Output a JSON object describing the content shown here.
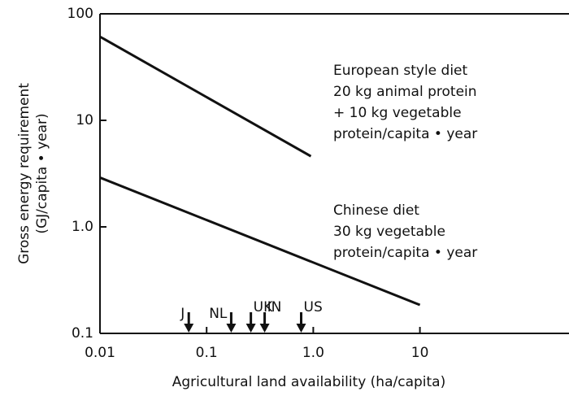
{
  "chart_data": {
    "type": "line",
    "y_label_lines": [
      "Gross energy requirement",
      "(GJ/capita • year)"
    ],
    "x_label": "Agricultural land availability (ha/capita)",
    "log_x": true,
    "log_y": true,
    "xlim": [
      0.01,
      250
    ],
    "ylim": [
      0.1,
      100
    ],
    "xticks": [
      0.01,
      0.1,
      {
        "value": 1,
        "label": "1.0"
      },
      10
    ],
    "yticks": [
      0.1,
      {
        "value": 1,
        "label": "1.0"
      },
      10,
      100
    ],
    "color": "#111111",
    "series": [
      {
        "label_lines": [
          "European style diet",
          "20 kg animal protein",
          "+ 10 kg vegetable",
          "protein/capita • year"
        ],
        "x": [
          0.01,
          0.95
        ],
        "values": [
          61,
          4.6
        ]
      },
      {
        "label_lines": [
          "Chinese diet",
          "30 kg vegetable",
          "protein/capita • year"
        ],
        "x": [
          0.01,
          10
        ],
        "values": [
          2.9,
          0.185
        ]
      }
    ],
    "markers": [
      {
        "label": "J",
        "x": 0.068
      },
      {
        "label": "NL",
        "x": 0.17
      },
      {
        "label": "UK",
        "x": 0.26
      },
      {
        "label": "IN",
        "x": 0.35
      },
      {
        "label": "US",
        "x": 0.77
      }
    ]
  }
}
